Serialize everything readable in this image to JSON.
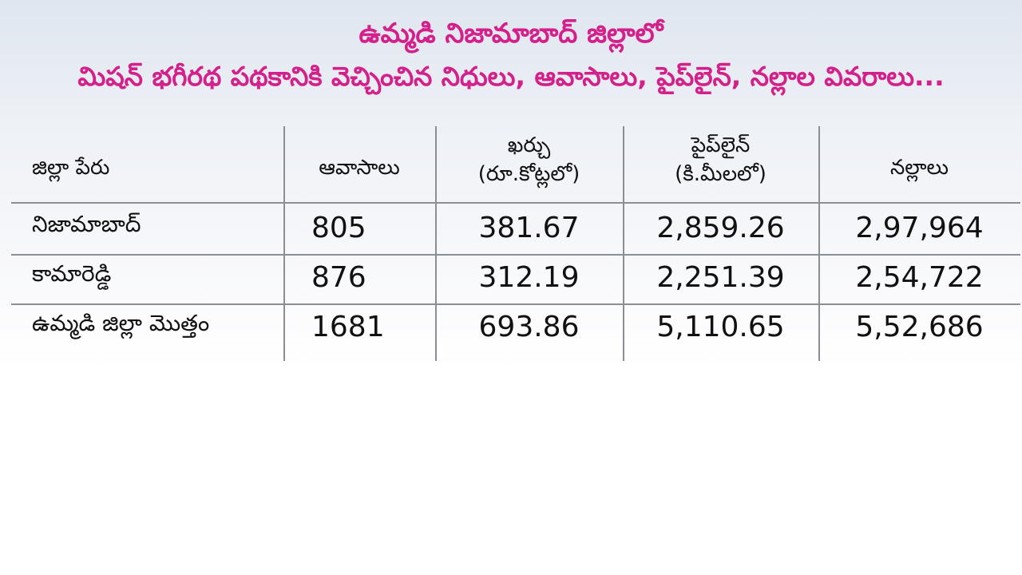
{
  "header": {
    "title_lines": [
      "ఉమ్మడి నిజామాబాద్ జిల్లాలో",
      "మిషన్ భగీరథ పథకానికి వెచ్చించిన నిధులు, ఆవాసాలు, పైప్‌లైన్, నల్లాల వివరాలు..."
    ]
  },
  "table": {
    "columns": [
      [
        "జిల్లా పేరు"
      ],
      [
        "ఆవాసాలు"
      ],
      [
        "ఖర్చు",
        "(రూ.కోట్లలో)"
      ],
      [
        "పైప్‌లైన్",
        "(కి.మీలలో)"
      ],
      [
        "నల్లాలు"
      ]
    ],
    "rows": [
      [
        "నిజామాబాద్",
        "805",
        "381.67",
        "2,859.26",
        "2,97,964"
      ],
      [
        "కామారెడ్డి",
        "876",
        "312.19",
        "2,251.39",
        "2,54,722"
      ],
      [
        "ఉమ్మడి జిల్లా మొత్తం",
        "1681",
        "693.86",
        "5,110.65",
        "5,52,686"
      ]
    ]
  }
}
